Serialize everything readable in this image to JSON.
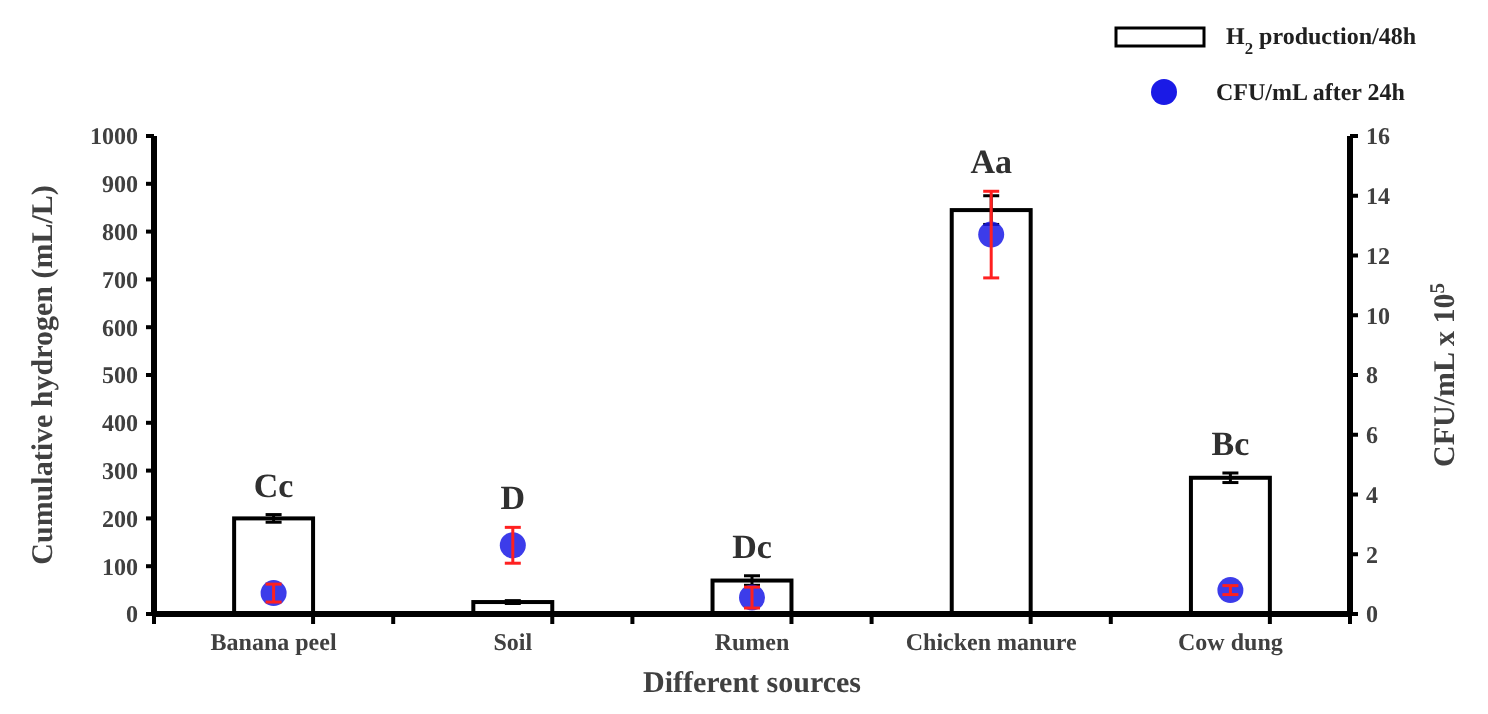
{
  "chart_data": {
    "type": "bar",
    "xlabel": "Different sources",
    "ylabel": "Cumulative hydrogen (mL/L)",
    "y2label": "CFU/mL x 10$^{5}$",
    "categories": [
      "Banana peel",
      "Soil",
      "Rumen",
      "Chicken manure",
      "Cow dung"
    ],
    "series": [
      {
        "name": "H$_{2}$ production/48h",
        "color": "#ffffff",
        "values": [
          200,
          25,
          70,
          845,
          285
        ],
        "errors": [
          8,
          3,
          10,
          30,
          10
        ]
      },
      {
        "name": "CFU/mL after 24h",
        "type": "scatter",
        "axis": "y2",
        "color": "#1a1ae6",
        "x": [
          "Banana peel",
          "Soil",
          "Rumen",
          "Chicken manure",
          "Cow dung"
        ],
        "values": [
          0.7,
          2.3,
          0.55,
          12.7,
          0.8
        ],
        "errors": [
          0.3,
          0.6,
          0.35,
          1.45,
          0.15
        ]
      }
    ],
    "ylim": [
      0,
      1000
    ],
    "yticks": [
      0,
      100,
      200,
      300,
      400,
      500,
      600,
      700,
      800,
      900,
      1000
    ],
    "y2lim": [
      0,
      16
    ],
    "y2ticks": [
      0,
      2,
      4,
      6,
      8,
      10,
      12,
      14,
      16
    ],
    "annotations": [
      "Cc",
      "D",
      "Dc",
      "Aa",
      "Bc"
    ],
    "legend": "top right",
    "marker": "circle"
  }
}
